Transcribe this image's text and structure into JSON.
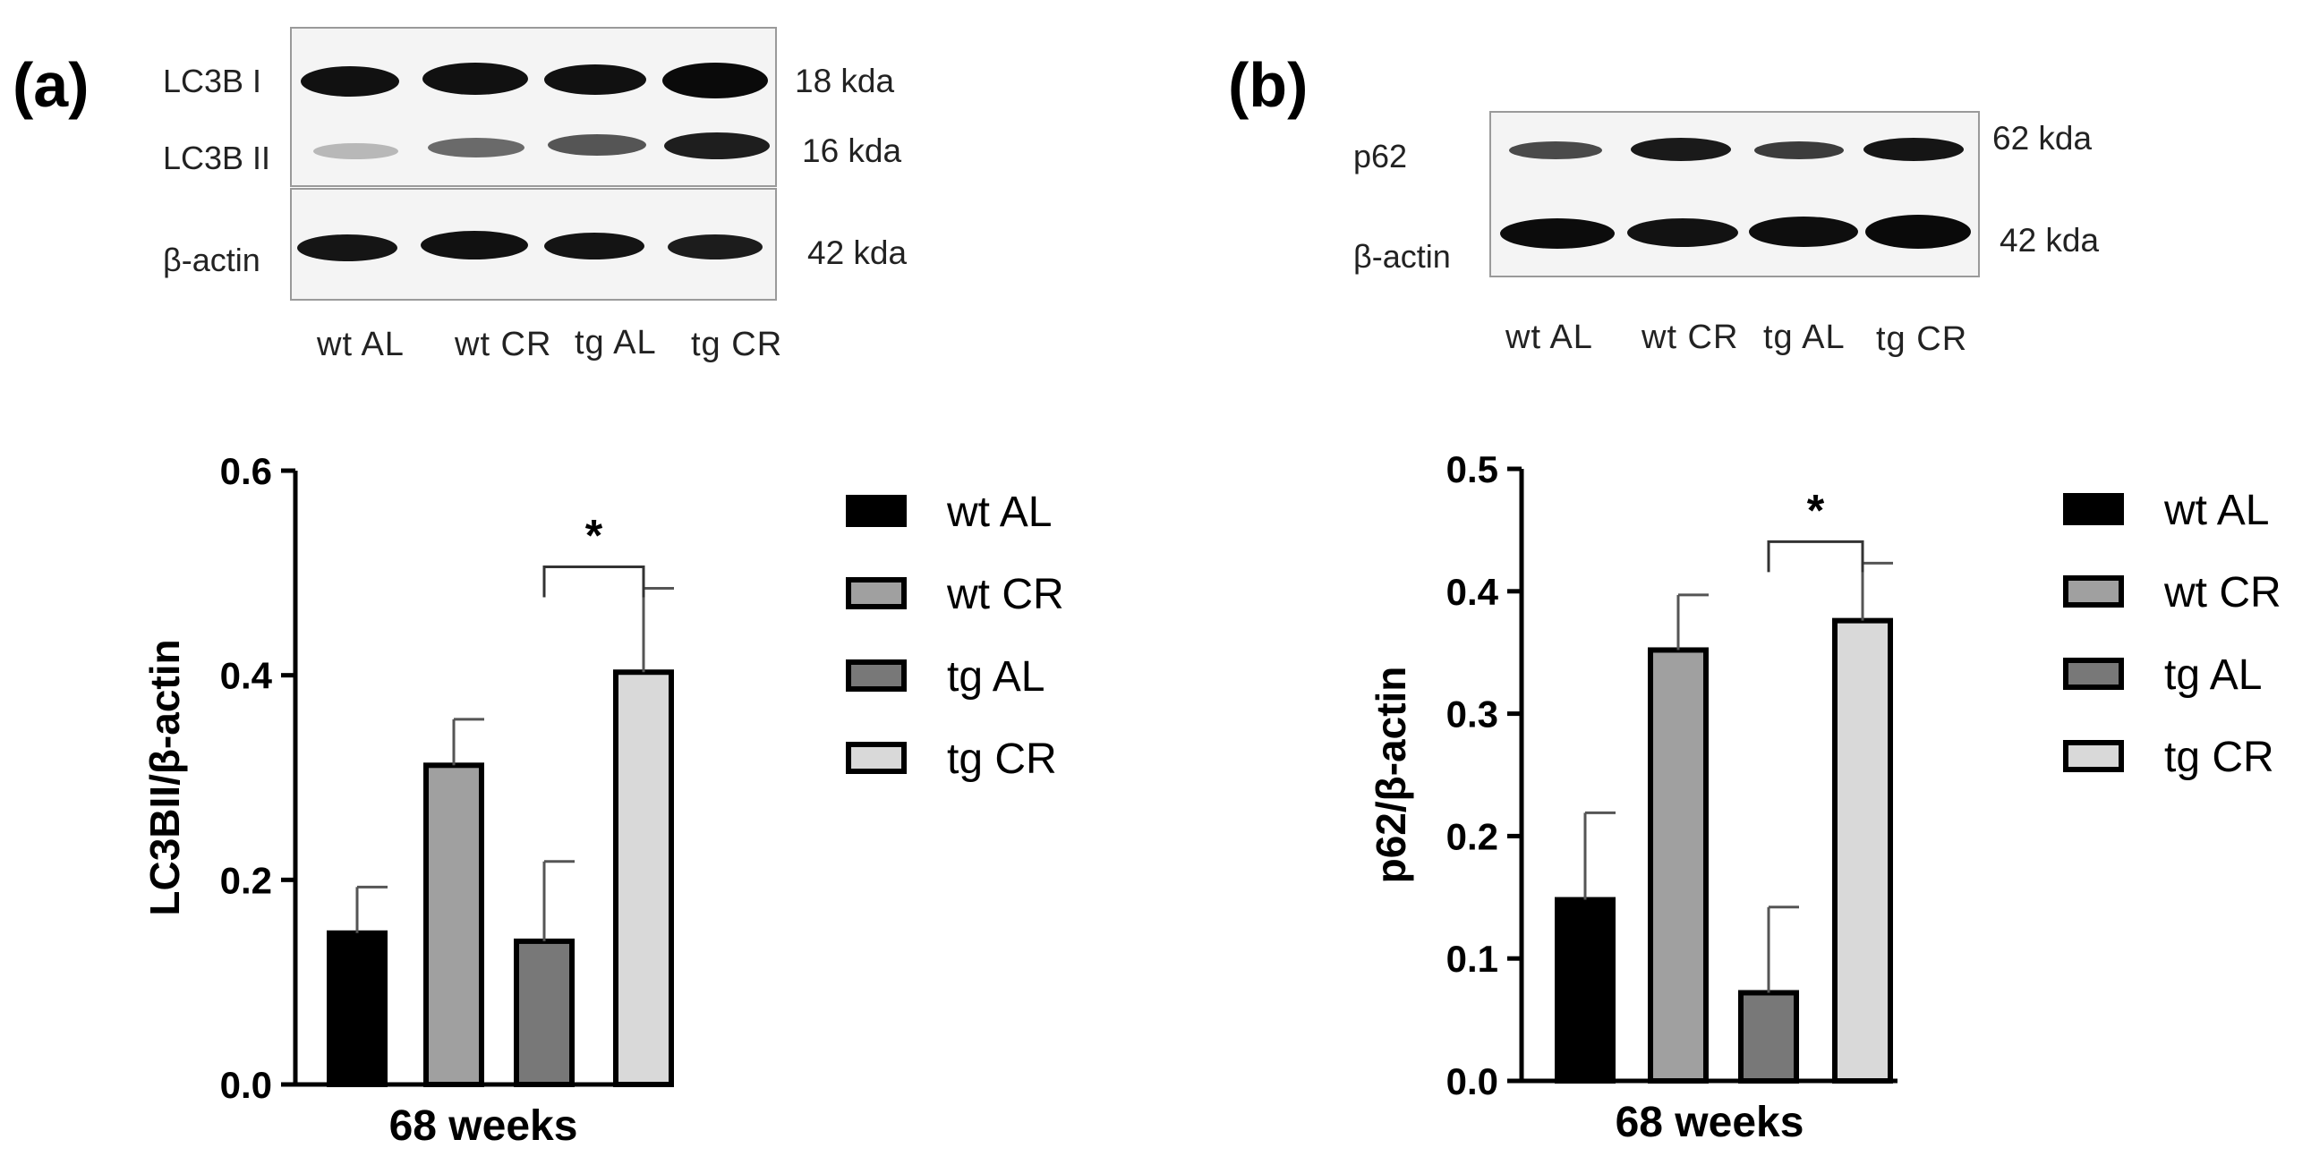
{
  "panels": [
    {
      "label": "(a)",
      "blot": {
        "rows": [
          {
            "label": "LC3B I",
            "kda": "18 kda"
          },
          {
            "label": "LC3B II",
            "kda": "16 kda"
          },
          {
            "label": "β-actin",
            "kda": "42 kda"
          }
        ],
        "lanes": [
          "wt AL",
          "wt CR",
          "tg AL",
          "tg CR"
        ]
      }
    },
    {
      "label": "(b)",
      "blot": {
        "rows": [
          {
            "label": "p62",
            "kda": "62 kda"
          },
          {
            "label": "β-actin",
            "kda": "42 kda"
          }
        ],
        "lanes": [
          "wt AL",
          "wt CR",
          "tg AL",
          "tg CR"
        ]
      }
    }
  ],
  "chart_data": [
    {
      "type": "bar",
      "categories": [
        "wt AL",
        "wt CR",
        "tg AL",
        "tg CR"
      ],
      "values": [
        0.148,
        0.312,
        0.14,
        0.403
      ],
      "errors": [
        0.045,
        0.045,
        0.078,
        0.082
      ],
      "colors": [
        "#000000",
        "#a0a0a0",
        "#787878",
        "#d9d9d9"
      ],
      "ylim": [
        0,
        0.6
      ],
      "yticks": [
        "0.0",
        "0.2",
        "0.4",
        "0.6"
      ],
      "ytick_values": [
        0,
        0.2,
        0.4,
        0.6
      ],
      "ylabel": "LC3BII/β-actin",
      "xlabel": "68 weeks",
      "significance": {
        "between": [
          2,
          3
        ],
        "label": "*"
      },
      "legend": [
        "wt AL",
        "wt CR",
        "tg AL",
        "tg CR"
      ]
    },
    {
      "type": "bar",
      "categories": [
        "wt AL",
        "wt CR",
        "tg AL",
        "tg CR"
      ],
      "values": [
        0.148,
        0.352,
        0.072,
        0.376
      ],
      "errors": [
        0.071,
        0.045,
        0.07,
        0.047
      ],
      "colors": [
        "#000000",
        "#a0a0a0",
        "#787878",
        "#d9d9d9"
      ],
      "ylim": [
        0,
        0.5
      ],
      "yticks": [
        "0.0",
        "0.1",
        "0.2",
        "0.3",
        "0.4",
        "0.5"
      ],
      "ytick_values": [
        0,
        0.1,
        0.2,
        0.3,
        0.4,
        0.5
      ],
      "ylabel": "p62/β-actin",
      "xlabel": "68 weeks",
      "significance": {
        "between": [
          2,
          3
        ],
        "label": "*"
      },
      "legend": [
        "wt AL",
        "wt CR",
        "tg AL",
        "tg CR"
      ]
    }
  ]
}
